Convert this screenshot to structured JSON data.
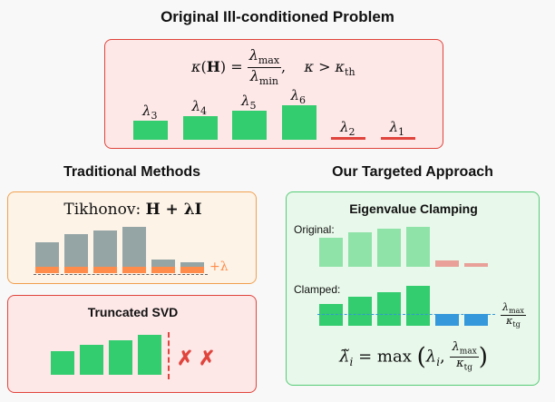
{
  "top": {
    "title": "Original Ill-conditioned Problem",
    "formula": {
      "kappa": "κ",
      "H": "H",
      "lam": "λ",
      "max": "max",
      "min": "min",
      "cond": "κ > κ",
      "th": "th"
    },
    "bars": [
      {
        "label": "λ",
        "sub": "3",
        "value": 0.55,
        "color": "#33cc6e"
      },
      {
        "label": "λ",
        "sub": "4",
        "value": 0.68,
        "color": "#33cc6e"
      },
      {
        "label": "λ",
        "sub": "5",
        "value": 0.83,
        "color": "#33cc6e"
      },
      {
        "label": "λ",
        "sub": "6",
        "value": 1.0,
        "color": "#33cc6e"
      },
      {
        "label": "λ",
        "sub": "2",
        "value": 0.08,
        "color": "#e0443c"
      },
      {
        "label": "λ",
        "sub": "1",
        "value": 0.05,
        "color": "#e0443c"
      }
    ]
  },
  "traditional": {
    "title": "Traditional Methods",
    "tikhonov": {
      "label": "Tikhonov:",
      "formula": "H + λI",
      "shift_label": "+λ",
      "bars": [
        0.62,
        0.82,
        0.92,
        1.0,
        0.18,
        0.12
      ],
      "shift": 0.14,
      "bar_color": "#95a5a6",
      "shift_color": "#ff8c4a"
    },
    "svd": {
      "label": "Truncated SVD",
      "bars": [
        0.6,
        0.74,
        0.86,
        1.0
      ],
      "marks": [
        "✗",
        "✗"
      ],
      "color": "#33cc6e",
      "cut_color": "#e0443c"
    }
  },
  "targeted": {
    "title": "Our Targeted Approach",
    "box_title": "Eigenvalue Clamping",
    "original_label": "Original:",
    "clamped_label": "Clamped:",
    "original_bars": [
      0.72,
      0.86,
      0.96,
      1.0,
      0.15,
      0.1
    ],
    "clamped_bars": [
      0.55,
      0.72,
      0.85,
      1.0,
      0.3,
      0.3
    ],
    "threshold_num": "λ",
    "threshold_num_sub": "max",
    "threshold_den": "κ",
    "threshold_den_sub": "tg",
    "formula": {
      "lhs": "λ̃",
      "i": "i",
      "eq": "= max",
      "lam_i": "λ",
      "num": "λ",
      "num_sub": "max",
      "den": "κ",
      "den_sub": "tg"
    },
    "colors": {
      "green": "#33cc6e",
      "light_green": "#8fe3a8",
      "light_red": "#e8a098",
      "blue": "#3498db"
    }
  }
}
